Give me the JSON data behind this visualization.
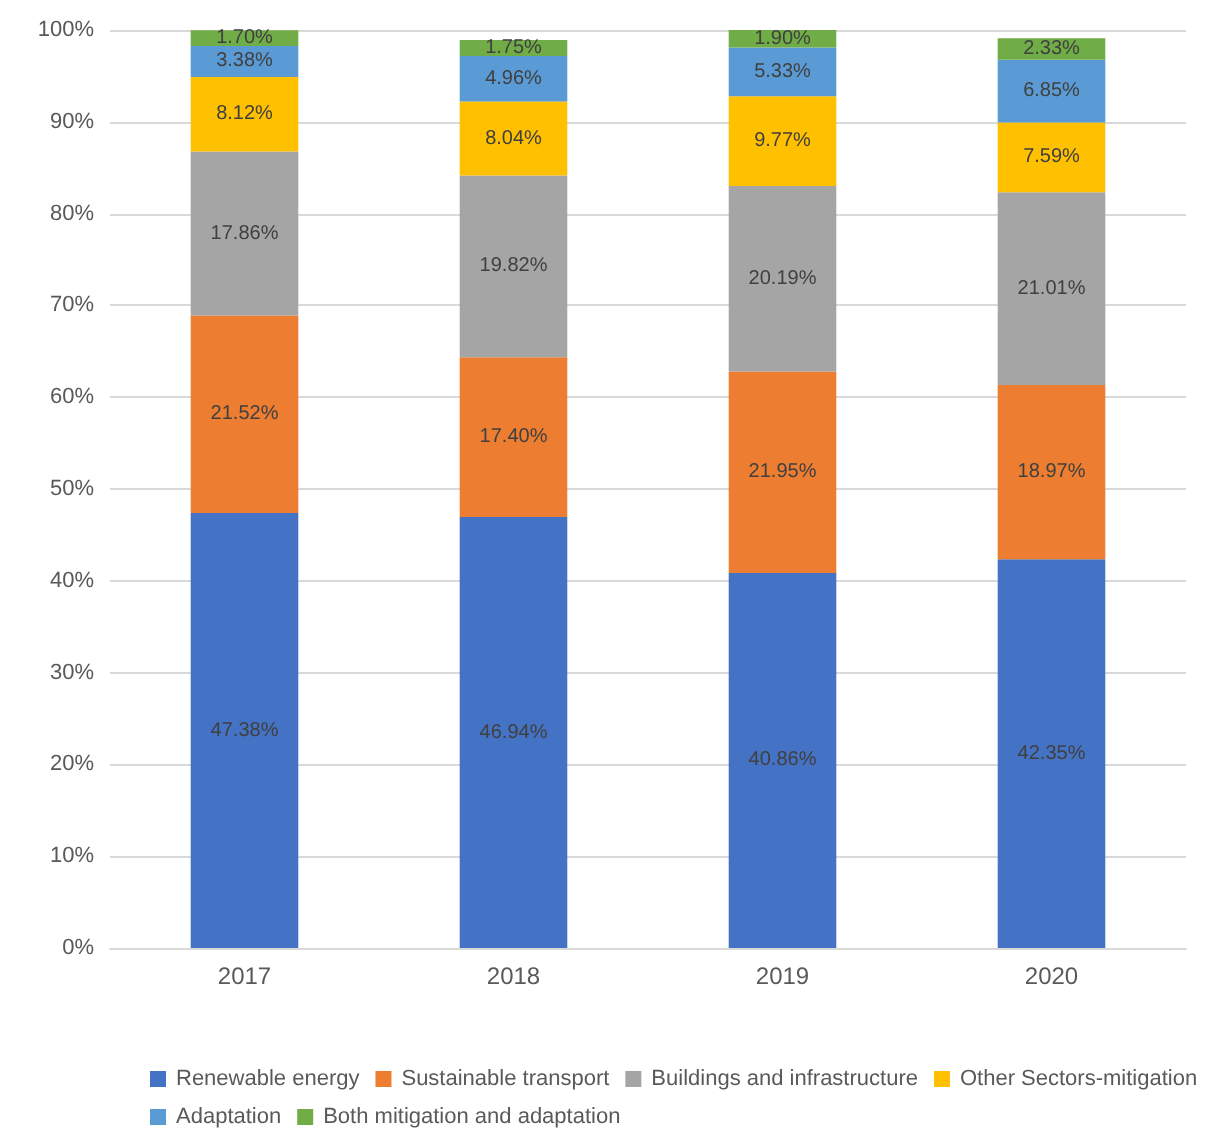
{
  "chart_data": {
    "type": "bar",
    "stacked": true,
    "categories": [
      "2017",
      "2018",
      "2019",
      "2020"
    ],
    "series": [
      {
        "name": "Renewable energy",
        "color": "#4472c4",
        "values": [
          47.38,
          46.94,
          40.86,
          42.35
        ],
        "value_labels": [
          "47.38%",
          "46.94%",
          "40.86%",
          "42.35%"
        ]
      },
      {
        "name": "Sustainable transport",
        "color": "#ed7d31",
        "values": [
          21.52,
          17.4,
          21.95,
          18.97
        ],
        "value_labels": [
          "21.52%",
          "17.40%",
          "21.95%",
          "18.97%"
        ]
      },
      {
        "name": "Buildings and infrastructure",
        "color": "#a5a5a5",
        "values": [
          17.86,
          19.82,
          20.19,
          21.01
        ],
        "value_labels": [
          "17.86%",
          "19.82%",
          "20.19%",
          "21.01%"
        ]
      },
      {
        "name": "Other Sectors-mitigation",
        "color": "#ffc000",
        "values": [
          8.12,
          8.04,
          9.77,
          7.59
        ],
        "value_labels": [
          "8.12%",
          "8.04%",
          "9.77%",
          "7.59%"
        ]
      },
      {
        "name": "Adaptation",
        "color": "#5b9bd5",
        "values": [
          3.38,
          4.96,
          5.33,
          6.85
        ],
        "value_labels": [
          "3.38%",
          "4.96%",
          "5.33%",
          "6.85%"
        ]
      },
      {
        "name": "Both mitigation and adaptation",
        "color": "#70ad47",
        "values": [
          1.7,
          1.75,
          1.9,
          2.33
        ],
        "value_labels": [
          "1.70%",
          "1.75%",
          "1.90%",
          "2.33%"
        ]
      }
    ],
    "ylim": [
      0,
      100
    ],
    "yticks": [
      {
        "value": 0,
        "label": "0%"
      },
      {
        "value": 10,
        "label": "10%"
      },
      {
        "value": 20,
        "label": "20%"
      },
      {
        "value": 30,
        "label": "30%"
      },
      {
        "value": 40,
        "label": "40%"
      },
      {
        "value": 50,
        "label": "50%"
      },
      {
        "value": 60,
        "label": "60%"
      },
      {
        "value": 70,
        "label": "70%"
      },
      {
        "value": 80,
        "label": "80%"
      },
      {
        "value": 90,
        "label": "90%"
      },
      {
        "value": 100,
        "label": "100%"
      }
    ],
    "grid": "y",
    "legend": "bottom"
  }
}
